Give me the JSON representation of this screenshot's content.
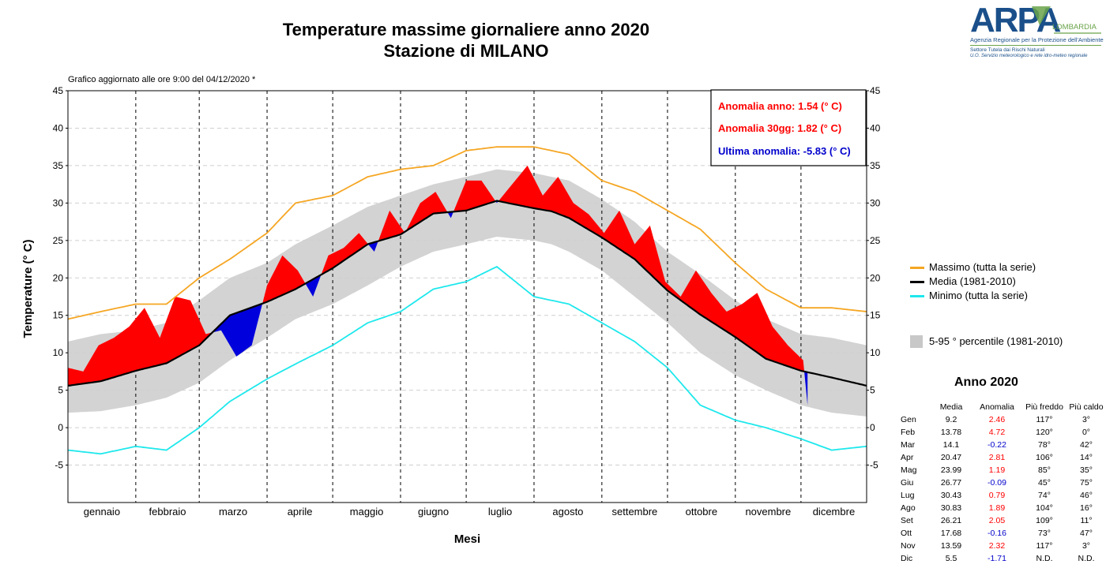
{
  "header": {
    "title": "Temperature massime giornaliere anno 2020",
    "subtitle": "Stazione di MILANO",
    "updated": "Grafico aggiornato alle ore 9:00 del  04/12/2020 *"
  },
  "logo": {
    "wordmark": "ARPA",
    "region": "LOMBARDIA",
    "tagline": "Agenzia Regionale per la Protezione dell'Ambiente",
    "sector": "Settore Tutela dai Rischi Naturali",
    "service": "U.O. Servizio meteorologico e rete idro-meteo regionale"
  },
  "anomaly_box": {
    "year": "Anomalia anno: 1.54 (° C)",
    "days30": "Anomalia 30gg: 1.82 (° C)",
    "last": "Ultima anomalia: -5.83 (° C)"
  },
  "colors": {
    "max_series": "#f5a623",
    "min_series": "#1ee8ec",
    "mean_line": "#000000",
    "band": "#d3d3d3",
    "positive_anomaly": "#ff0000",
    "negative_anomaly": "#0000dd"
  },
  "legend": {
    "max": "Massimo (tutta la serie)",
    "mean": "Media (1981-2010)",
    "min": "Minimo (tutta la serie)",
    "band": "5-95 ° percentile (1981-2010)"
  },
  "chart_data": {
    "type": "line",
    "title": "Temperature massime giornaliere anno 2020",
    "subtitle": "Stazione di MILANO",
    "xlabel": "Mesi",
    "ylabel": "Temperature (° C)",
    "ylim": [
      -10,
      45
    ],
    "yticks": [
      -5,
      0,
      5,
      10,
      15,
      20,
      25,
      30,
      35,
      40,
      45
    ],
    "grid": true,
    "x_day_range": [
      1,
      366
    ],
    "month_labels": [
      "gennaio",
      "febbraio",
      "marzo",
      "aprile",
      "maggio",
      "giugno",
      "luglio",
      "agosto",
      "settembre",
      "ottobre",
      "novembre",
      "dicembre"
    ],
    "month_dividers_day": [
      32,
      61,
      92,
      122,
      153,
      183,
      214,
      245,
      275,
      306,
      336
    ],
    "observed_days": 339,
    "series": [
      {
        "name": "Massimo (tutta la serie)",
        "day": [
          1,
          16,
          32,
          46,
          61,
          75,
          92,
          105,
          122,
          138,
          153,
          168,
          183,
          197,
          214,
          222,
          230,
          245,
          260,
          275,
          290,
          306,
          320,
          336,
          350,
          366
        ],
        "values": [
          14.5,
          15.5,
          16.5,
          16.5,
          20.0,
          22.5,
          26.0,
          30.0,
          31.0,
          33.5,
          34.5,
          35.0,
          37.0,
          37.5,
          37.5,
          37.0,
          36.5,
          33.0,
          31.5,
          29.0,
          26.5,
          22.0,
          18.5,
          16.0,
          16.0,
          15.5
        ]
      },
      {
        "name": "Media (1981-2010)",
        "day": [
          1,
          16,
          32,
          46,
          61,
          75,
          92,
          105,
          122,
          138,
          153,
          168,
          183,
          197,
          214,
          222,
          230,
          245,
          260,
          275,
          290,
          306,
          320,
          336,
          350,
          366
        ],
        "values": [
          5.6,
          6.2,
          7.6,
          8.6,
          11.0,
          15.0,
          16.8,
          18.5,
          21.3,
          24.5,
          25.8,
          28.6,
          29.0,
          30.3,
          29.3,
          28.9,
          28.0,
          25.4,
          22.5,
          18.3,
          15.1,
          12.1,
          9.2,
          7.6,
          6.7,
          5.6
        ]
      },
      {
        "name": "Minimo (tutta la serie)",
        "day": [
          1,
          16,
          32,
          46,
          61,
          75,
          92,
          105,
          122,
          138,
          153,
          168,
          183,
          197,
          214,
          222,
          230,
          245,
          260,
          275,
          290,
          306,
          320,
          336,
          350,
          366
        ],
        "values": [
          -3.0,
          -3.5,
          -2.5,
          -3.0,
          0.0,
          3.5,
          6.5,
          8.5,
          11.0,
          14.0,
          15.5,
          18.5,
          19.5,
          21.5,
          17.5,
          17.0,
          16.5,
          14.0,
          11.5,
          8.0,
          3.0,
          1.0,
          0.0,
          -1.5,
          -3.0,
          -2.5
        ]
      },
      {
        "name": "5-95 ° percentile (1981-2010) low",
        "day": [
          1,
          16,
          32,
          46,
          61,
          75,
          92,
          105,
          122,
          138,
          153,
          168,
          183,
          197,
          214,
          222,
          230,
          245,
          260,
          275,
          290,
          306,
          320,
          336,
          350,
          366
        ],
        "values": [
          2.0,
          2.2,
          3.0,
          4.0,
          6.0,
          9.0,
          12.0,
          14.5,
          16.5,
          19.0,
          21.5,
          23.5,
          24.5,
          25.5,
          25.0,
          24.5,
          23.5,
          21.0,
          17.5,
          14.0,
          10.0,
          7.0,
          5.0,
          3.0,
          2.0,
          1.5
        ]
      },
      {
        "name": "5-95 ° percentile (1981-2010) high",
        "day": [
          1,
          16,
          32,
          46,
          61,
          75,
          92,
          105,
          122,
          138,
          153,
          168,
          183,
          197,
          214,
          222,
          230,
          245,
          260,
          275,
          290,
          306,
          320,
          336,
          350,
          366
        ],
        "values": [
          11.5,
          12.5,
          13.0,
          14.0,
          17.0,
          20.0,
          22.0,
          24.5,
          27.0,
          29.5,
          31.0,
          32.5,
          33.5,
          34.5,
          34.0,
          33.5,
          33.0,
          30.5,
          27.5,
          23.5,
          20.5,
          17.0,
          14.5,
          12.5,
          12.0,
          11.0
        ]
      },
      {
        "name": "Temperature massime 2020",
        "day": [
          1,
          8,
          15,
          22,
          29,
          36,
          43,
          50,
          57,
          64,
          71,
          78,
          85,
          92,
          99,
          106,
          113,
          120,
          127,
          134,
          141,
          148,
          155,
          162,
          169,
          176,
          183,
          190,
          197,
          204,
          211,
          218,
          225,
          232,
          239,
          246,
          253,
          260,
          267,
          274,
          281,
          288,
          295,
          302,
          309,
          316,
          323,
          330,
          337,
          339
        ],
        "values": [
          8.0,
          7.5,
          11.0,
          12.0,
          13.5,
          16.0,
          12.0,
          17.5,
          17.0,
          12.5,
          13.0,
          9.5,
          11.0,
          19.0,
          23.0,
          21.0,
          17.5,
          23.0,
          24.0,
          26.0,
          23.5,
          29.0,
          26.0,
          30.0,
          31.5,
          28.0,
          33.0,
          33.0,
          30.0,
          32.5,
          35.0,
          31.0,
          33.5,
          30.0,
          28.5,
          26.0,
          29.0,
          24.5,
          27.0,
          19.5,
          17.5,
          21.0,
          18.0,
          15.5,
          16.5,
          18.0,
          13.5,
          11.0,
          9.0,
          3.0
        ]
      }
    ]
  },
  "table": {
    "title": "Anno  2020",
    "headers": [
      "",
      "Media",
      "Anomalia",
      "Più freddo",
      "Più caldo"
    ],
    "rows": [
      [
        "Gen",
        "9.2",
        "2.46",
        "117°",
        "3°"
      ],
      [
        "Feb",
        "13.78",
        "4.72",
        "120°",
        "0°"
      ],
      [
        "Mar",
        "14.1",
        "-0.22",
        "78°",
        "42°"
      ],
      [
        "Apr",
        "20.47",
        "2.81",
        "106°",
        "14°"
      ],
      [
        "Mag",
        "23.99",
        "1.19",
        "85°",
        "35°"
      ],
      [
        "Giu",
        "26.77",
        "-0.09",
        "45°",
        "75°"
      ],
      [
        "Lug",
        "30.43",
        "0.79",
        "74°",
        "46°"
      ],
      [
        "Ago",
        "30.83",
        "1.89",
        "104°",
        "16°"
      ],
      [
        "Set",
        "26.21",
        "2.05",
        "109°",
        "11°"
      ],
      [
        "Ott",
        "17.68",
        "-0.16",
        "73°",
        "47°"
      ],
      [
        "Nov",
        "13.59",
        "2.32",
        "117°",
        "3°"
      ],
      [
        "Dic",
        "5.5",
        "-1.71",
        "N.D.",
        "N.D."
      ]
    ]
  }
}
